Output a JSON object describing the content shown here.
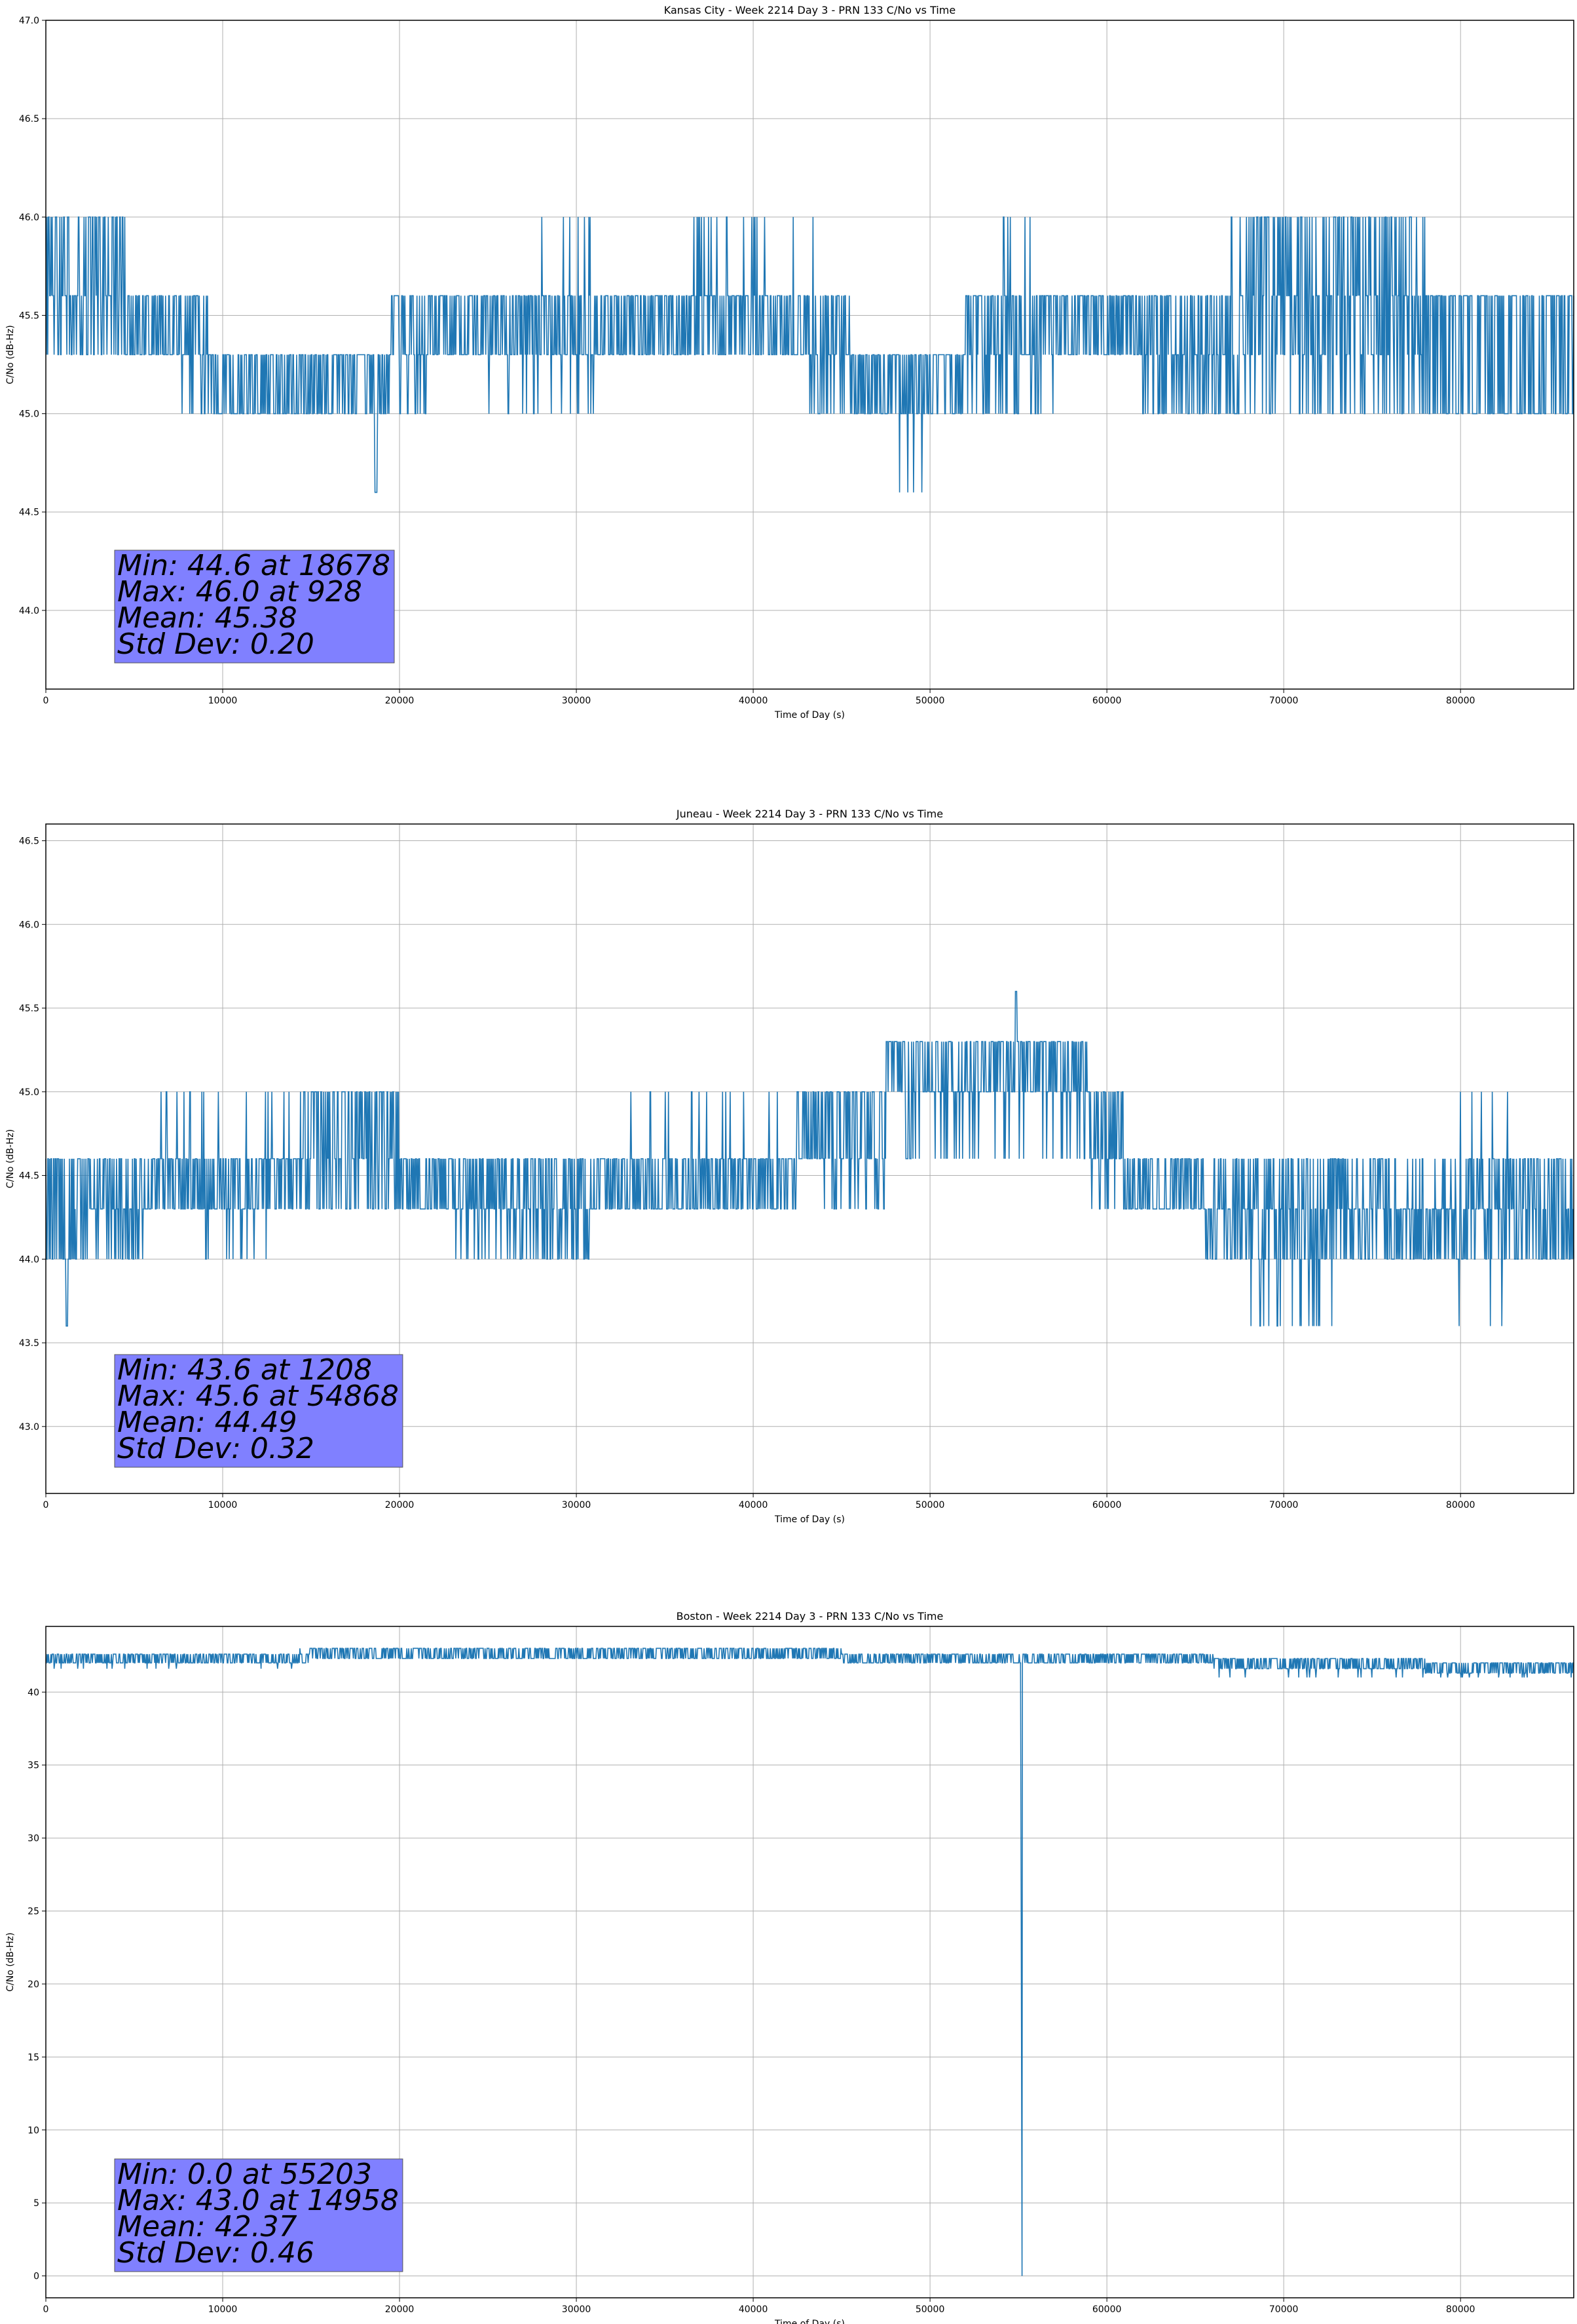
{
  "colors": {
    "series": "#1f77b4",
    "grid": "#b0b0b0",
    "stats_box": "#8080ff"
  },
  "chart_data": [
    {
      "type": "line",
      "title": "Kansas City - Week 2214 Day 3 - PRN 133 C/No vs Time",
      "xlabel": "Time of Day (s)",
      "ylabel": "C/No (dB-Hz)",
      "xlim": [
        0,
        86400
      ],
      "ylim": [
        43.6,
        47.0
      ],
      "xticks": [
        0,
        10000,
        20000,
        30000,
        40000,
        50000,
        60000,
        70000,
        80000
      ],
      "yticks": [
        44.0,
        44.5,
        45.0,
        45.5,
        46.0,
        46.5,
        47.0
      ],
      "ytick_decimals": 1,
      "grid": true,
      "stats": [
        "Min: 44.6 at 18678",
        "Max: 46.0 at 928",
        "Mean: 45.38",
        "Std Dev: 0.20"
      ],
      "series": [
        {
          "levels": [
            44.6,
            45.0,
            45.3,
            45.6,
            46.0
          ],
          "dominant_band": [
            {
              "from": 0,
              "to": 9200,
              "levels": [
                45.3,
                45.6
              ]
            },
            {
              "from": 9200,
              "to": 19500,
              "levels": [
                45.0,
                45.3
              ]
            },
            {
              "from": 19500,
              "to": 45500,
              "levels": [
                45.3,
                45.6
              ]
            },
            {
              "from": 45500,
              "to": 52000,
              "levels": [
                45.0,
                45.3
              ]
            },
            {
              "from": 52000,
              "to": 78000,
              "levels": [
                45.3,
                45.6
              ]
            },
            {
              "from": 78000,
              "to": 86400,
              "levels": [
                45.0,
                45.6
              ]
            }
          ],
          "excursions": [
            {
              "from": 0,
              "to": 4500,
              "level": 46.0,
              "density": 0.35
            },
            {
              "from": 27500,
              "to": 31000,
              "level": 46.0,
              "density": 0.06
            },
            {
              "from": 36500,
              "to": 43500,
              "level": 46.0,
              "density": 0.12
            },
            {
              "from": 54000,
              "to": 56000,
              "level": 46.0,
              "density": 0.05
            },
            {
              "from": 67000,
              "to": 78000,
              "level": 46.0,
              "density": 0.3
            },
            {
              "from": 7500,
              "to": 9200,
              "level": 45.0,
              "density": 0.2
            },
            {
              "from": 19500,
              "to": 21500,
              "level": 45.0,
              "density": 0.2
            },
            {
              "from": 25000,
              "to": 31000,
              "level": 45.0,
              "density": 0.08
            },
            {
              "from": 43000,
              "to": 45500,
              "level": 45.0,
              "density": 0.15
            },
            {
              "from": 52000,
              "to": 57000,
              "level": 45.0,
              "density": 0.2
            },
            {
              "from": 62000,
              "to": 78000,
              "level": 45.0,
              "density": 0.3
            },
            {
              "from": 46500,
              "to": 50500,
              "level": 44.6,
              "density": 0.05
            },
            {
              "from": 18600,
              "to": 18750,
              "level": 44.6,
              "density": 1.0
            }
          ]
        }
      ]
    },
    {
      "type": "line",
      "title": "Juneau - Week 2214 Day 3 - PRN 133 C/No vs Time",
      "xlabel": "Time of Day (s)",
      "ylabel": "C/No (dB-Hz)",
      "xlim": [
        0,
        86400
      ],
      "ylim": [
        42.6,
        46.6
      ],
      "xticks": [
        0,
        10000,
        20000,
        30000,
        40000,
        50000,
        60000,
        70000,
        80000
      ],
      "yticks": [
        43.0,
        43.5,
        44.0,
        44.5,
        45.0,
        45.5,
        46.0,
        46.5
      ],
      "ytick_decimals": 1,
      "grid": true,
      "stats": [
        "Min: 43.6 at 1208",
        "Max: 45.6 at 54868",
        "Mean: 44.49",
        "Std Dev: 0.32"
      ],
      "series": [
        {
          "levels": [
            43.6,
            44.0,
            44.3,
            44.6,
            45.0,
            45.3,
            45.6
          ],
          "dominant_band": [
            {
              "from": 0,
              "to": 1500,
              "levels": [
                44.0,
                44.6
              ]
            },
            {
              "from": 1500,
              "to": 42500,
              "levels": [
                44.3,
                44.6
              ]
            },
            {
              "from": 42500,
              "to": 47500,
              "levels": [
                44.6,
                45.0
              ]
            },
            {
              "from": 47500,
              "to": 59000,
              "levels": [
                45.0,
                45.3
              ]
            },
            {
              "from": 59000,
              "to": 61000,
              "levels": [
                44.6,
                45.0
              ]
            },
            {
              "from": 61000,
              "to": 65500,
              "levels": [
                44.3,
                44.6
              ]
            },
            {
              "from": 65500,
              "to": 86400,
              "levels": [
                44.0,
                44.3
              ]
            }
          ],
          "excursions": [
            {
              "from": 1500,
              "to": 5500,
              "level": 44.0,
              "density": 0.3
            },
            {
              "from": 9000,
              "to": 12500,
              "level": 44.0,
              "density": 0.08
            },
            {
              "from": 23000,
              "to": 31000,
              "level": 44.0,
              "density": 0.25
            },
            {
              "from": 6500,
              "to": 20000,
              "level": 45.0,
              "density": 0.08
            },
            {
              "from": 14500,
              "to": 20000,
              "level": 45.0,
              "density": 0.35
            },
            {
              "from": 33000,
              "to": 42500,
              "level": 45.0,
              "density": 0.05
            },
            {
              "from": 44000,
              "to": 47500,
              "level": 44.3,
              "density": 0.2
            },
            {
              "from": 48500,
              "to": 59000,
              "level": 44.6,
              "density": 0.12
            },
            {
              "from": 59000,
              "to": 62000,
              "level": 44.3,
              "density": 0.15
            },
            {
              "from": 66000,
              "to": 86400,
              "level": 44.6,
              "density": 0.3
            },
            {
              "from": 68000,
              "to": 73000,
              "level": 43.6,
              "density": 0.2
            },
            {
              "from": 77000,
              "to": 84500,
              "level": 45.0,
              "density": 0.03
            },
            {
              "from": 79000,
              "to": 84000,
              "level": 43.6,
              "density": 0.03
            },
            {
              "from": 1150,
              "to": 1250,
              "level": 43.6,
              "density": 1.0
            },
            {
              "from": 54820,
              "to": 54900,
              "level": 45.6,
              "density": 1.0
            }
          ]
        }
      ]
    },
    {
      "type": "line",
      "title": "Boston - Week 2214 Day 3 - PRN 133 C/No vs Time",
      "xlabel": "Time of Day (s)",
      "ylabel": "C/No (dB-Hz)",
      "xlim": [
        0,
        86400
      ],
      "ylim": [
        -1.5,
        44.5
      ],
      "xticks": [
        0,
        10000,
        20000,
        30000,
        40000,
        50000,
        60000,
        70000,
        80000
      ],
      "yticks": [
        0,
        5,
        10,
        15,
        20,
        25,
        30,
        35,
        40
      ],
      "ytick_decimals": 0,
      "grid": true,
      "stats": [
        "Min: 0.0 at 55203",
        "Max: 43.0 at 14958",
        "Mean: 42.37",
        "Std Dev: 0.46"
      ],
      "series": [
        {
          "levels": [
            41.3,
            41.6,
            42.0,
            42.3,
            42.6,
            43.0
          ],
          "dominant_band": [
            {
              "from": 0,
              "to": 15000,
              "levels": [
                42.0,
                42.6
              ]
            },
            {
              "from": 15000,
              "to": 45000,
              "levels": [
                42.3,
                43.0
              ]
            },
            {
              "from": 45000,
              "to": 66000,
              "levels": [
                42.0,
                42.6
              ]
            },
            {
              "from": 66000,
              "to": 78000,
              "levels": [
                41.6,
                42.3
              ]
            },
            {
              "from": 78000,
              "to": 86400,
              "levels": [
                41.3,
                42.0
              ]
            }
          ],
          "excursions": [
            {
              "from": 0,
              "to": 14000,
              "level": 41.6,
              "density": 0.04
            },
            {
              "from": 14000,
              "to": 30000,
              "level": 43.0,
              "density": 0.05
            },
            {
              "from": 66000,
              "to": 86400,
              "level": 41.0,
              "density": 0.05
            },
            {
              "from": 14930,
              "to": 14990,
              "level": 43.0,
              "density": 1.0
            }
          ],
          "dropouts": [
            {
              "x": 55203,
              "min": 0.0
            }
          ]
        }
      ]
    }
  ]
}
